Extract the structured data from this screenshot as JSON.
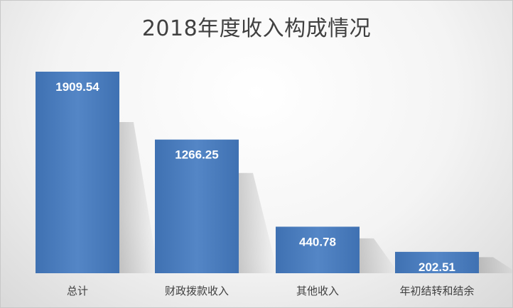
{
  "chart_data": {
    "type": "bar",
    "title": "2018年度收入构成情况",
    "categories": [
      "总计",
      "财政拨款收入",
      "其他收入",
      "年初结转和结余"
    ],
    "values": [
      1909.54,
      1266.25,
      440.78,
      202.51
    ],
    "data_labels": [
      "1909.54",
      "1266.25",
      "440.78",
      "202.51"
    ],
    "xlabel": "",
    "ylabel": "",
    "ylim": [
      0,
      1909.54
    ],
    "grid": false,
    "legend": "none",
    "bar_color": "#4a7dbd",
    "bar_color_dark": "#3a6aa8"
  }
}
